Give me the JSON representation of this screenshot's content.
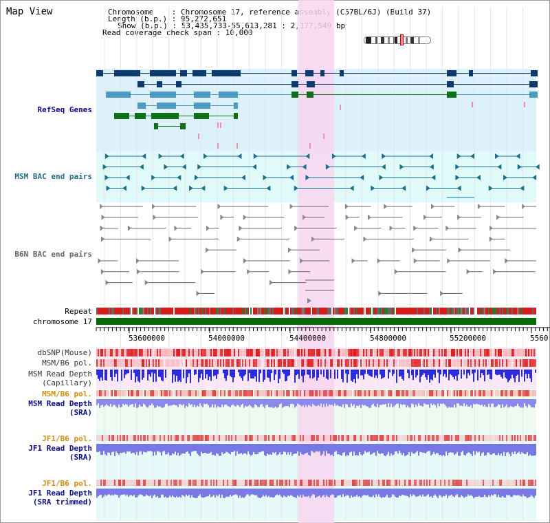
{
  "page_title": "Map View",
  "info": {
    "chromosome_line": "Chromosome    : Chromosome 17, reference assembly (C57BL/6J) (Build 37)",
    "length_line": "Length (b.p.) : 95,272,651",
    "show_line": "Show (b.p.) : 53,435,733-55,613,281 : 2,177,549 bp",
    "coverage_line": "Read coverage check span : 10,000"
  },
  "tracks": {
    "refseq": "RefSeq Genes",
    "msm_bac": "MSM BAC end pairs",
    "b6n_bac": "B6N BAC end pairs",
    "repeat": "Repeat",
    "chromosome": "chromosome 17",
    "dbsnp": "dbSNP(Mouse)",
    "msm_b6_pol_cap": "MSM/B6 pol.",
    "msm_depth_cap_1": "MSM Read Depth",
    "msm_depth_cap_2": "(Capillary)",
    "msm_b6_pol_sra": "MSM/B6 pol.",
    "msm_depth_sra_1": "MSM Read Depth",
    "msm_depth_sra_2": "(SRA)",
    "jf1_b6_pol_sra": "JF1/B6 pol.",
    "jf1_depth_sra_1": "JF1 Read Depth",
    "jf1_depth_sra_2": "(SRA)",
    "jf1_b6_pol_trim": "JF1/B6 pol.",
    "jf1_depth_trim_1": "JF1 Read Depth",
    "jf1_depth_trim_2": "(SRA trimmed)"
  },
  "axis": {
    "ticks": [
      "53600000",
      "54000000",
      "54400000",
      "54800000",
      "55200000",
      "5560"
    ]
  },
  "colors": {
    "refseq_bg": "#dcf1fa",
    "bac_bg": "#e0fafa",
    "highlight": "#f7d6f0",
    "gene_navy": "#0c3a6e",
    "gene_teal": "#4a9ac4",
    "gene_green": "#10701a",
    "bac_line": "#1e6f8a",
    "b6n_line": "#666666",
    "chromosome_bar": "#0a6a0a",
    "label_navy": "#0a0a9a",
    "label_teal": "#1e6f8a",
    "label_orange": "#d88a0a"
  }
}
